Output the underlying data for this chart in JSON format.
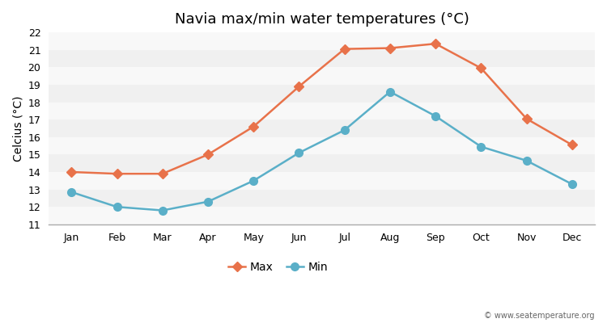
{
  "title": "Navia max/min water temperatures (°C)",
  "ylabel": "Celcius (°C)",
  "months": [
    "Jan",
    "Feb",
    "Mar",
    "Apr",
    "May",
    "Jun",
    "Jul",
    "Aug",
    "Sep",
    "Oct",
    "Nov",
    "Dec"
  ],
  "max_temps": [
    14.0,
    13.9,
    13.9,
    15.0,
    16.6,
    18.9,
    21.05,
    21.1,
    21.35,
    19.95,
    17.05,
    15.55
  ],
  "min_temps": [
    12.85,
    12.0,
    11.8,
    12.3,
    13.5,
    15.1,
    16.4,
    18.6,
    17.2,
    15.45,
    14.65,
    13.3
  ],
  "max_color": "#e8724a",
  "min_color": "#5aafc8",
  "ylim": [
    11,
    22
  ],
  "yticks": [
    11,
    12,
    13,
    14,
    15,
    16,
    17,
    18,
    19,
    20,
    21,
    22
  ],
  "bg_color": "#ffffff",
  "plot_bg_color": "#f0f0f0",
  "stripe_color": "#e0e0e0",
  "white_color": "#f8f8f8",
  "grid_color": "#ffffff",
  "max_marker": "D",
  "min_marker": "o",
  "max_marker_size": 6,
  "min_marker_size": 7,
  "line_width": 1.8,
  "watermark": "© www.seatemperature.org",
  "legend_labels": [
    "Max",
    "Min"
  ],
  "title_fontsize": 13,
  "axis_fontsize": 9,
  "label_fontsize": 10
}
